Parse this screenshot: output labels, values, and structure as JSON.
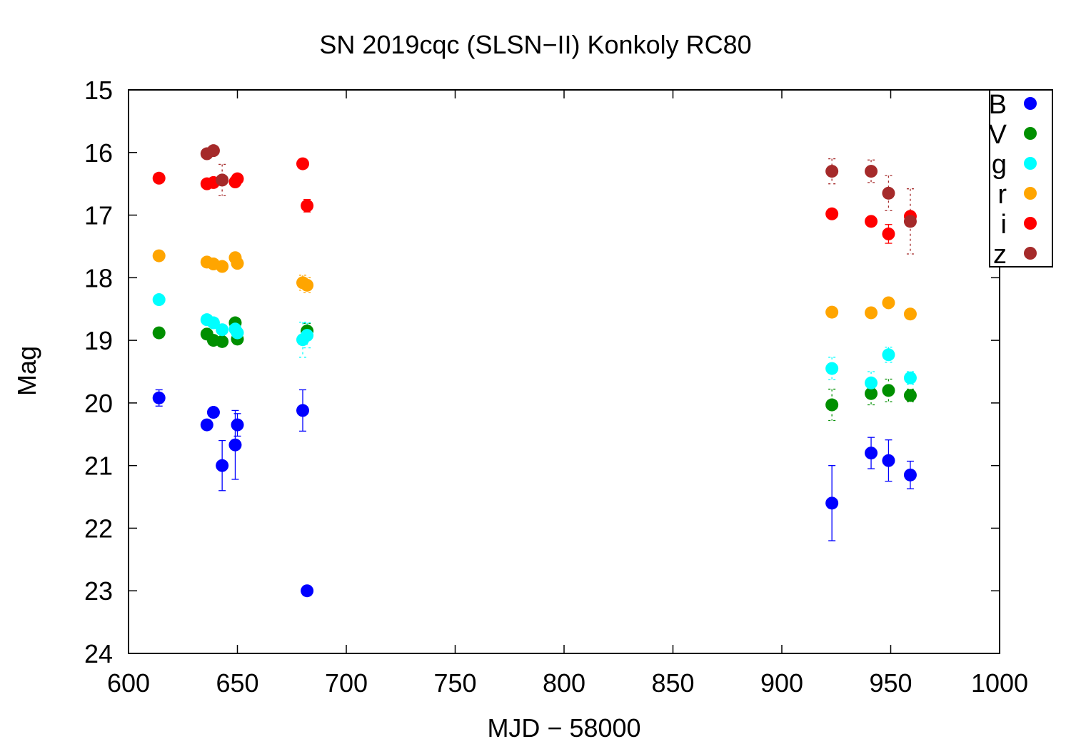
{
  "chart_data": {
    "type": "scatter",
    "title": "SN 2019cqc (SLSN−II) Konkoly RC80",
    "xlabel": "MJD − 58000",
    "ylabel": "Mag",
    "xlim": [
      600,
      1000
    ],
    "ylim": [
      15,
      24
    ],
    "y_inverted": true,
    "x_ticks": [
      600,
      650,
      700,
      750,
      800,
      850,
      900,
      950,
      1000
    ],
    "y_ticks": [
      15,
      16,
      17,
      18,
      19,
      20,
      21,
      22,
      23,
      24
    ],
    "grid": false,
    "legend_position": "top-right",
    "series": [
      {
        "name": "B",
        "color": "#0000ff",
        "errorbar_style": "solid",
        "points": [
          {
            "x": 614,
            "y": 19.92,
            "err": 0.13
          },
          {
            "x": 636,
            "y": 20.35,
            "err": 0.08
          },
          {
            "x": 639,
            "y": 20.15,
            "err": 0.08
          },
          {
            "x": 643,
            "y": 21.0,
            "err": 0.4
          },
          {
            "x": 649,
            "y": 20.67,
            "err": 0.55
          },
          {
            "x": 650,
            "y": 20.35,
            "err": 0.18
          },
          {
            "x": 680,
            "y": 20.12,
            "err": 0.33
          },
          {
            "x": 682,
            "y": 23.0,
            "err": 0.08
          },
          {
            "x": 923,
            "y": 21.6,
            "err": 0.6
          },
          {
            "x": 941,
            "y": 20.8,
            "err": 0.25
          },
          {
            "x": 949,
            "y": 20.92,
            "err": 0.33
          },
          {
            "x": 959,
            "y": 21.15,
            "err": 0.22
          }
        ]
      },
      {
        "name": "V",
        "color": "#008f00",
        "errorbar_style": "dashed",
        "points": [
          {
            "x": 614,
            "y": 18.88,
            "err": 0.05
          },
          {
            "x": 636,
            "y": 18.9,
            "err": 0.05
          },
          {
            "x": 639,
            "y": 19.0,
            "err": 0.05
          },
          {
            "x": 643,
            "y": 19.02,
            "err": 0.05
          },
          {
            "x": 649,
            "y": 18.72,
            "err": 0.06
          },
          {
            "x": 650,
            "y": 18.98,
            "err": 0.06
          },
          {
            "x": 682,
            "y": 18.85,
            "err": 0.12
          },
          {
            "x": 923,
            "y": 20.03,
            "err": 0.25
          },
          {
            "x": 941,
            "y": 19.85,
            "err": 0.18
          },
          {
            "x": 949,
            "y": 19.8,
            "err": 0.18
          },
          {
            "x": 959,
            "y": 19.88,
            "err": 0.1
          }
        ]
      },
      {
        "name": "g",
        "color": "#00ffff",
        "errorbar_style": "dashed",
        "points": [
          {
            "x": 614,
            "y": 18.35,
            "err": 0.04
          },
          {
            "x": 636,
            "y": 18.67,
            "err": 0.05
          },
          {
            "x": 639,
            "y": 18.72,
            "err": 0.05
          },
          {
            "x": 643,
            "y": 18.83,
            "err": 0.05
          },
          {
            "x": 649,
            "y": 18.82,
            "err": 0.06
          },
          {
            "x": 650,
            "y": 18.88,
            "err": 0.06
          },
          {
            "x": 680,
            "y": 18.99,
            "err": 0.28
          },
          {
            "x": 682,
            "y": 18.92,
            "err": 0.2
          },
          {
            "x": 923,
            "y": 19.45,
            "err": 0.18
          },
          {
            "x": 941,
            "y": 19.68,
            "err": 0.18
          },
          {
            "x": 949,
            "y": 19.23,
            "err": 0.12
          },
          {
            "x": 959,
            "y": 19.6,
            "err": 0.1
          }
        ]
      },
      {
        "name": "r",
        "color": "#ffa500",
        "errorbar_style": "dashed",
        "points": [
          {
            "x": 614,
            "y": 17.65,
            "err": 0.04
          },
          {
            "x": 636,
            "y": 17.75,
            "err": 0.04
          },
          {
            "x": 639,
            "y": 17.78,
            "err": 0.04
          },
          {
            "x": 643,
            "y": 17.82,
            "err": 0.04
          },
          {
            "x": 649,
            "y": 17.68,
            "err": 0.05
          },
          {
            "x": 650,
            "y": 17.77,
            "err": 0.05
          },
          {
            "x": 680,
            "y": 18.08,
            "err": 0.12
          },
          {
            "x": 682,
            "y": 18.12,
            "err": 0.12
          },
          {
            "x": 923,
            "y": 18.55,
            "err": 0.08
          },
          {
            "x": 941,
            "y": 18.56,
            "err": 0.08
          },
          {
            "x": 949,
            "y": 18.4,
            "err": 0.06
          },
          {
            "x": 959,
            "y": 18.58,
            "err": 0.06
          }
        ]
      },
      {
        "name": "i",
        "color": "#ff0000",
        "errorbar_style": "solid",
        "points": [
          {
            "x": 614,
            "y": 16.41,
            "err": 0.04
          },
          {
            "x": 636,
            "y": 16.5,
            "err": 0.04
          },
          {
            "x": 639,
            "y": 16.48,
            "err": 0.04
          },
          {
            "x": 649,
            "y": 16.47,
            "err": 0.05
          },
          {
            "x": 650,
            "y": 16.42,
            "err": 0.05
          },
          {
            "x": 680,
            "y": 16.18,
            "err": 0.05
          },
          {
            "x": 682,
            "y": 16.85,
            "err": 0.1
          },
          {
            "x": 923,
            "y": 16.98,
            "err": 0.08
          },
          {
            "x": 941,
            "y": 17.1,
            "err": 0.06
          },
          {
            "x": 949,
            "y": 17.3,
            "err": 0.15
          },
          {
            "x": 959,
            "y": 17.02,
            "err": 0.06
          }
        ]
      },
      {
        "name": "z",
        "color": "#a52a2a",
        "errorbar_style": "dashed",
        "points": [
          {
            "x": 636,
            "y": 16.02,
            "err": 0.05
          },
          {
            "x": 639,
            "y": 15.97,
            "err": 0.05
          },
          {
            "x": 643,
            "y": 16.44,
            "err": 0.25
          },
          {
            "x": 923,
            "y": 16.3,
            "err": 0.2
          },
          {
            "x": 941,
            "y": 16.3,
            "err": 0.18
          },
          {
            "x": 949,
            "y": 16.65,
            "err": 0.28
          },
          {
            "x": 959,
            "y": 17.1,
            "err": 0.52
          }
        ]
      }
    ]
  }
}
